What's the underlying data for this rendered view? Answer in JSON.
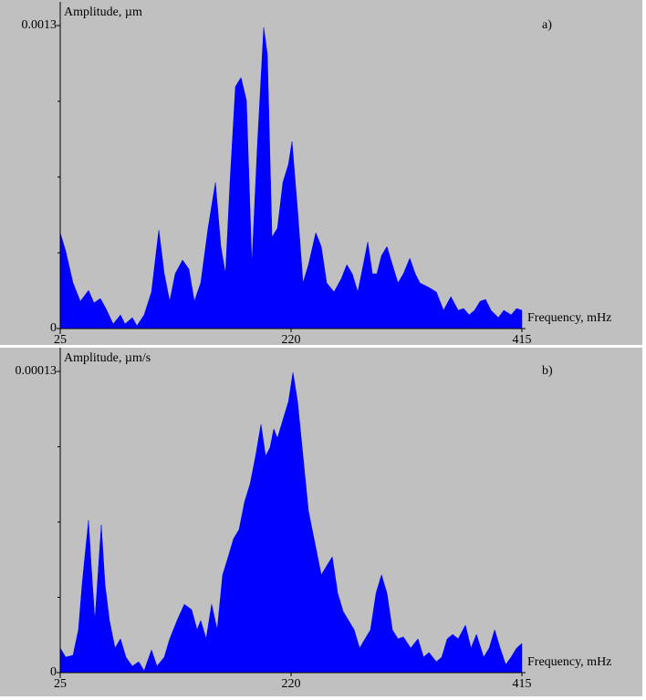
{
  "chart_data": [
    {
      "type": "area",
      "panel_label": "a)",
      "y_label": "Amplitude, µm",
      "x_label": "Frequency, mHz",
      "xlim": [
        25,
        415
      ],
      "xticks": [
        25,
        220,
        415
      ],
      "ylim": [
        0,
        0.0013
      ],
      "yticks": [
        0,
        0.0013
      ],
      "minor_yticks": [
        0.000325,
        0.00065,
        0.000975
      ],
      "color": "#0000ff",
      "x": [
        25,
        29.6,
        35.8,
        42.0,
        48.9,
        53.5,
        58.9,
        63.6,
        69.7,
        75.9,
        79.7,
        85.9,
        89.8,
        95.9,
        102.1,
        108.3,
        112.9,
        117.5,
        122.1,
        128.3,
        133.7,
        138.3,
        143.7,
        149.9,
        156.1,
        160.7,
        164.6,
        168.4,
        173.0,
        177.7,
        182.3,
        186.9,
        191.5,
        196.9,
        200.0,
        203.9,
        208.5,
        213.1,
        217.8,
        220.8,
        225.5,
        230.1,
        234.7,
        240.9,
        245.5,
        250.1,
        256.3,
        262.5,
        267.1,
        271.7,
        276.4,
        281.0,
        284.8,
        288.7,
        292.5,
        296.4,
        301.0,
        305.6,
        310.3,
        314.9,
        320.3,
        324.9,
        328.8,
        336.5,
        342.7,
        348.8,
        355.0,
        361.2,
        365.8,
        370.4,
        375.0,
        379.7,
        384.3,
        388.9,
        395.1,
        399.7,
        405.9,
        410.5,
        415
      ],
      "values": [
        0.000411,
        0.000333,
        0.000196,
        0.000117,
        0.000164,
        0.00011,
        0.000129,
        8.61e-05,
        1.96e-05,
        5.87e-05,
        1.96e-05,
        4.7e-05,
        1.17e-05,
        5.87e-05,
        0.000157,
        0.000423,
        0.000235,
        0.000117,
        0.000235,
        0.000294,
        0.000255,
        0.000117,
        0.000196,
        0.000431,
        0.000627,
        0.000352,
        0.000235,
        0.000627,
        0.001038,
        0.001077,
        0.000979,
        0.000274,
        0.000783,
        0.001292,
        0.001175,
        0.000392,
        0.000431,
        0.000627,
        0.000705,
        0.000803,
        0.000509,
        0.000196,
        0.000274,
        0.000411,
        0.000352,
        0.000196,
        0.000157,
        0.000215,
        0.000274,
        0.000235,
        0.000157,
        0.000274,
        0.000372,
        0.000235,
        0.000235,
        0.000313,
        0.000352,
        0.000274,
        0.000196,
        0.000235,
        0.000302,
        0.000235,
        0.000196,
        0.000176,
        0.000157,
        7.83e-05,
        0.000137,
        7.83e-05,
        8.61e-05,
        5.87e-05,
        7.83e-05,
        0.000117,
        0.000125,
        7.83e-05,
        4.7e-05,
        7.83e-05,
        5.87e-05,
        8.61e-05,
        7.83e-05
      ]
    },
    {
      "type": "area",
      "panel_label": "b)",
      "y_label": "Amplitude, µm/s",
      "x_label": "Frequency, mHz",
      "xlim": [
        25,
        415
      ],
      "xticks": [
        25,
        220,
        415
      ],
      "ylim": [
        0,
        0.00013
      ],
      "yticks": [
        0,
        0.00013
      ],
      "minor_yticks": [
        3.25e-05,
        6.5e-05,
        9.75e-05
      ],
      "color": "#0000ff",
      "x": [
        25,
        29.6,
        35.8,
        40.4,
        43.5,
        46.6,
        48.9,
        51.2,
        54.3,
        57.4,
        59.7,
        62.8,
        66.6,
        71.3,
        75.9,
        80.5,
        85.9,
        91.3,
        95.9,
        102.1,
        106.7,
        112.9,
        117.5,
        123.7,
        129.8,
        136.0,
        140.6,
        143.7,
        148.3,
        152.9,
        157.6,
        162.2,
        166.9,
        171.5,
        176.1,
        180.7,
        185.4,
        190.0,
        194.6,
        198.5,
        202.3,
        205.4,
        208.5,
        213.1,
        217.8,
        221.6,
        225.5,
        230.1,
        234.7,
        240.9,
        245.5,
        250.1,
        254.8,
        259.4,
        264.0,
        268.6,
        273.3,
        277.9,
        282.5,
        287.1,
        291.8,
        296.4,
        301.0,
        305.6,
        310.3,
        314.9,
        321.1,
        327.2,
        331.9,
        336.5,
        342.7,
        347.3,
        351.9,
        356.5,
        361.2,
        367.3,
        372.0,
        376.6,
        382.7,
        387.4,
        392.0,
        396.6,
        401.3,
        405.9,
        410.5,
        415
      ],
      "values": [
        1.06e-05,
        6.7e-06,
        7.5e-06,
        1.85e-05,
        3.82e-05,
        5.4e-05,
        6.58e-05,
        4.61e-05,
        2.25e-05,
        4.61e-05,
        6.38e-05,
        3.82e-05,
        2.25e-05,
        1.06e-05,
        1.46e-05,
        6.7e-06,
        2.8e-06,
        4.7e-06,
        8e-07,
        9.8e-06,
        2.8e-06,
        6.7e-06,
        1.46e-05,
        2.25e-05,
        2.95e-05,
        2.72e-05,
        1.85e-05,
        2.25e-05,
        1.46e-05,
        2.95e-05,
        1.85e-05,
        4.22e-05,
        5e-05,
        5.79e-05,
        6.18e-05,
        7.37e-05,
        8.15e-05,
        9.34e-05,
        0.0001072,
        9.34e-05,
        9.73e-05,
        0.0001052,
        0.0001012,
        0.0001091,
        0.000117,
        0.0001296,
        0.000117,
        9.34e-05,
        6.97e-05,
        5.4e-05,
        4.22e-05,
        4.61e-05,
        5e-05,
        3.43e-05,
        2.64e-05,
        2.25e-05,
        1.85e-05,
        1.06e-05,
        1.46e-05,
        1.85e-05,
        3.43e-05,
        4.22e-05,
        3.43e-05,
        1.85e-05,
        1.46e-05,
        1.54e-05,
        1.06e-05,
        1.46e-05,
        6.7e-06,
        8.7e-06,
        4.7e-06,
        6.7e-06,
        1.46e-05,
        1.65e-05,
        1.46e-05,
        2.05e-05,
        1.06e-05,
        1.65e-05,
        6.7e-06,
        1.06e-05,
        1.85e-05,
        1.06e-05,
        3.5e-06,
        6.7e-06,
        1.06e-05,
        1.26e-05
      ]
    }
  ]
}
